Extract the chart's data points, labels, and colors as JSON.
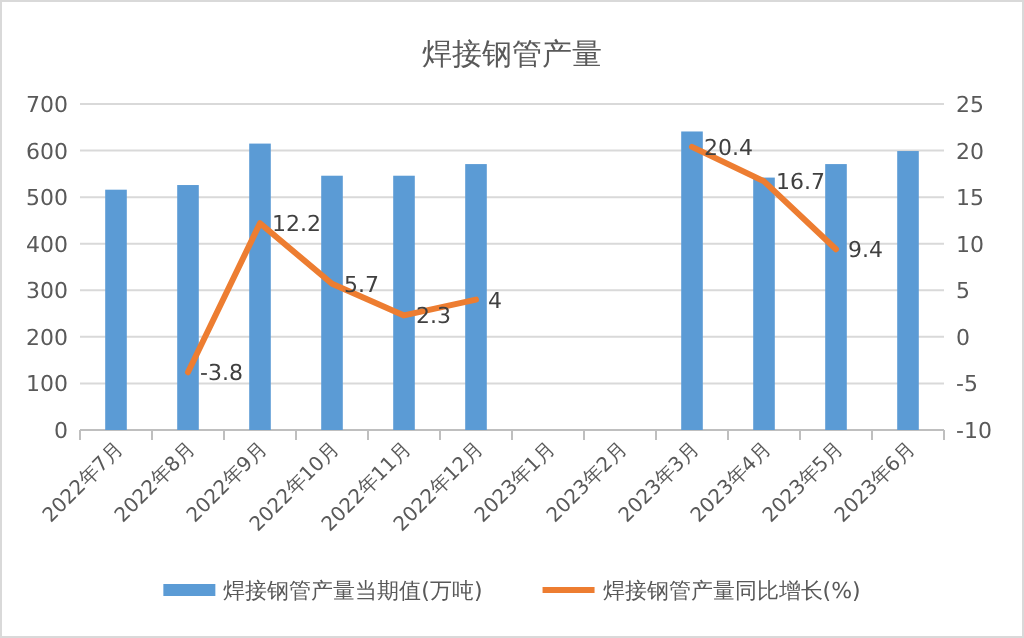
{
  "chart_data": {
    "type": "bar",
    "title": "焊接钢管产量",
    "categories": [
      "2022年7月",
      "2022年8月",
      "2022年9月",
      "2022年10月",
      "2022年11月",
      "2022年12月",
      "2023年1月",
      "2023年2月",
      "2023年3月",
      "2023年4月",
      "2023年5月",
      "2023年6月"
    ],
    "series": [
      {
        "name": "焊接钢管产量当期值(万吨)",
        "color": "#5b9bd5",
        "values": [
          516,
          526,
          615,
          546,
          546,
          571,
          null,
          null,
          641,
          542,
          571,
          599
        ]
      },
      {
        "name": "焊接钢管产量同比增长(%)",
        "type": "line",
        "axis": "y2",
        "color": "#ed7d31",
        "values": [
          null,
          -3.8,
          12.2,
          5.7,
          2.3,
          4,
          null,
          null,
          20.4,
          16.7,
          9.4,
          null
        ],
        "value_labels": [
          null,
          "-3.8",
          "12.2",
          "5.7",
          "2.3",
          "4",
          null,
          null,
          "20.4",
          "16.7",
          "9.4",
          null
        ]
      }
    ],
    "ylim": [
      0,
      700
    ],
    "yticks": [
      0,
      100,
      200,
      300,
      400,
      500,
      600,
      700
    ],
    "y2lim": [
      -10,
      25
    ],
    "y2ticks": [
      -10,
      -5,
      0,
      5,
      10,
      15,
      20,
      25
    ],
    "grid": "y",
    "legend": "bottom"
  }
}
